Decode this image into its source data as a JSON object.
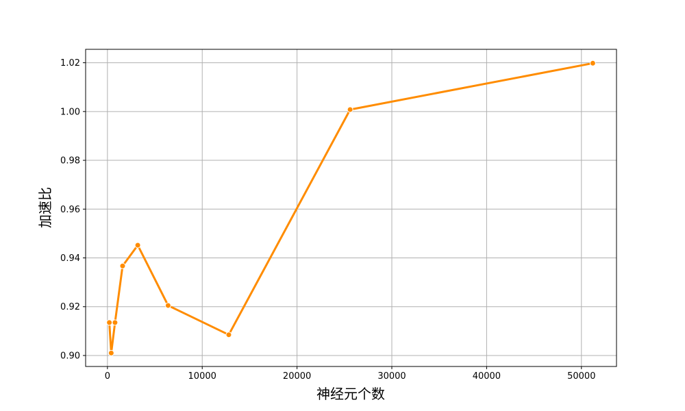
{
  "chart_data": {
    "type": "line",
    "title": "",
    "xlabel": "神经元个数",
    "ylabel": "加速比",
    "xlim": [
      -2300,
      53700
    ],
    "ylim": [
      0.8955,
      1.0255
    ],
    "xticks": [
      0,
      10000,
      20000,
      30000,
      40000,
      50000
    ],
    "xtick_labels": [
      "0",
      "10000",
      "20000",
      "30000",
      "40000",
      "50000"
    ],
    "yticks": [
      0.9,
      0.92,
      0.94,
      0.96,
      0.98,
      1.0,
      1.02
    ],
    "ytick_labels": [
      "0.90",
      "0.92",
      "0.94",
      "0.96",
      "0.98",
      "1.00",
      "1.02"
    ],
    "grid": true,
    "series": [
      {
        "color": "#ff8c00",
        "marker": "circle",
        "points": [
          {
            "x": 200,
            "y": 0.9135
          },
          {
            "x": 400,
            "y": 0.901
          },
          {
            "x": 800,
            "y": 0.9135
          },
          {
            "x": 1600,
            "y": 0.9367
          },
          {
            "x": 3200,
            "y": 0.9452
          },
          {
            "x": 6400,
            "y": 0.9205
          },
          {
            "x": 12800,
            "y": 0.9085
          },
          {
            "x": 25600,
            "y": 1.0008
          },
          {
            "x": 51200,
            "y": 1.0198
          }
        ]
      }
    ]
  }
}
